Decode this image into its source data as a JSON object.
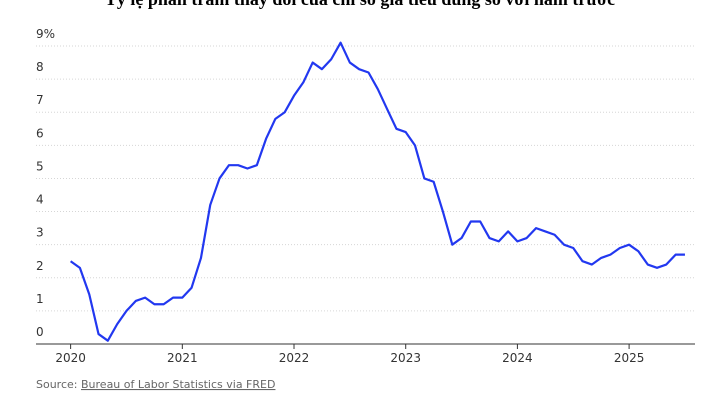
{
  "chart_data": {
    "type": "line",
    "title": "Tỷ lệ phần trăm thay đổi của chỉ số giá tiêu dùng so với năm trước",
    "source_prefix": "Source:",
    "source_link": "Bureau of Labor Statistics via FRED",
    "x": [
      2020,
      2020.083,
      2020.167,
      2020.25,
      2020.333,
      2020.417,
      2020.5,
      2020.583,
      2020.667,
      2020.75,
      2020.833,
      2020.917,
      2021,
      2021.083,
      2021.167,
      2021.25,
      2021.333,
      2021.417,
      2021.5,
      2021.583,
      2021.667,
      2021.75,
      2021.833,
      2021.917,
      2022,
      2022.083,
      2022.167,
      2022.25,
      2022.333,
      2022.417,
      2022.5,
      2022.583,
      2022.667,
      2022.75,
      2022.833,
      2022.917,
      2023,
      2023.083,
      2023.167,
      2023.25,
      2023.333,
      2023.417,
      2023.5,
      2023.583,
      2023.667,
      2023.75,
      2023.833,
      2023.917,
      2024,
      2024.083,
      2024.167,
      2024.25,
      2024.333,
      2024.417,
      2024.5,
      2024.583,
      2024.667,
      2024.75,
      2024.833,
      2024.917,
      2025,
      2025.083,
      2025.167,
      2025.25,
      2025.333,
      2025.417,
      2025.5
    ],
    "values": [
      2.5,
      2.3,
      1.5,
      0.3,
      0.1,
      0.6,
      1.0,
      1.3,
      1.4,
      1.2,
      1.2,
      1.4,
      1.4,
      1.7,
      2.6,
      4.2,
      5.0,
      5.4,
      5.4,
      5.3,
      5.4,
      6.2,
      6.8,
      7.0,
      7.5,
      7.9,
      8.5,
      8.3,
      8.6,
      9.1,
      8.5,
      8.3,
      8.2,
      7.7,
      7.1,
      6.5,
      6.4,
      6.0,
      5.0,
      4.9,
      4.0,
      3.0,
      3.2,
      3.7,
      3.7,
      3.2,
      3.1,
      3.4,
      3.1,
      3.2,
      3.5,
      3.4,
      3.3,
      3.0,
      2.9,
      2.5,
      2.4,
      2.6,
      2.7,
      2.9,
      3.0,
      2.8,
      2.4,
      2.3,
      2.4,
      2.7,
      2.7
    ],
    "color": "#2238f0",
    "xlim": [
      2019.69,
      2025.59
    ],
    "xticks": [
      2020,
      2021,
      2022,
      2023,
      2024,
      2025
    ],
    "ylim": [
      0,
      9
    ],
    "yticks": [
      0,
      1,
      2,
      3,
      4,
      5,
      6,
      7,
      8,
      {
        "value": 9,
        "label": "9%"
      }
    ],
    "grid": true
  }
}
